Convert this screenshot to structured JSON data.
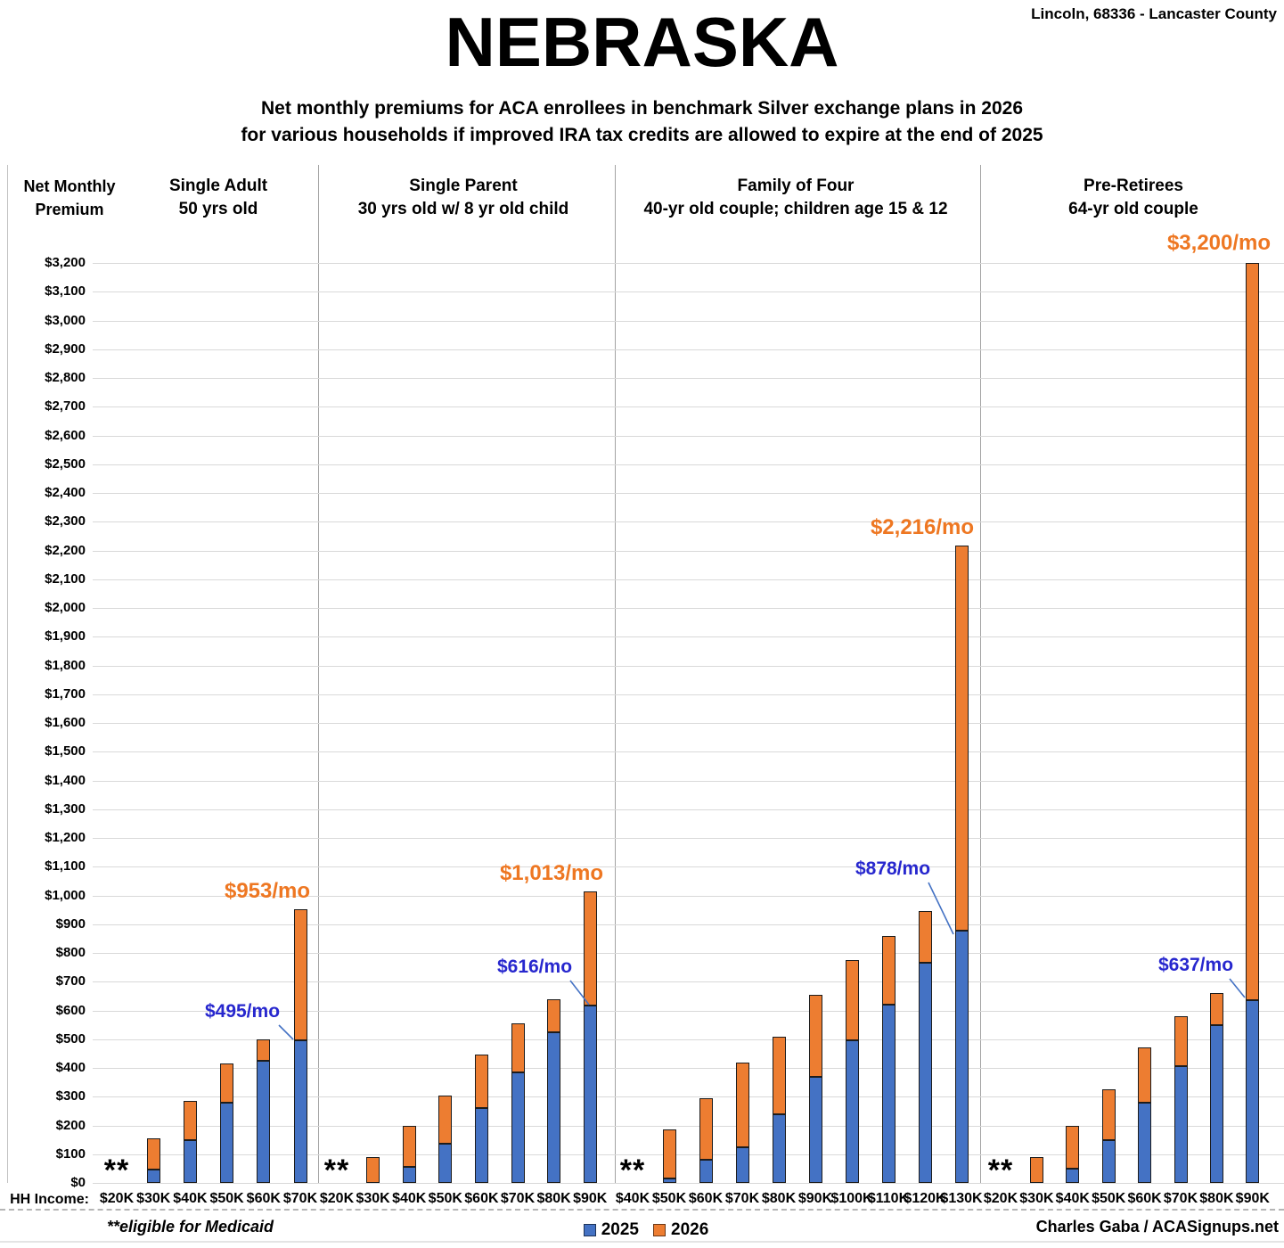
{
  "header": {
    "title": "NEBRASKA",
    "location": "Lincoln, 68336 - Lancaster County",
    "subtitle_line1": "Net monthly premiums for ACA enrollees in benchmark Silver exchange plans in 2026",
    "subtitle_line2": "for various households if improved IRA tax credits are allowed to expire at the end of 2025",
    "y_axis_header_line1": "Net Monthly",
    "y_axis_header_line2": "Premium"
  },
  "x_axis": {
    "label": "HH Income:"
  },
  "footer": {
    "medicaid_note": "**eligible for Medicaid",
    "credit": "Charles Gaba / ACASignups.net"
  },
  "legend": {
    "items": [
      {
        "label": "2025",
        "color": "#4472C4"
      },
      {
        "label": "2026",
        "color": "#ED7D31"
      }
    ]
  },
  "colors": {
    "bar_2025": "#4472C4",
    "bar_2026": "#ED7D31",
    "annotation_2025": "#2727CE",
    "annotation_2026": "#EE7722",
    "leader_line": "#4472C4",
    "gridline": "#D9D9D9"
  },
  "chart_data": {
    "type": "bar",
    "stacking": "2026 increase drawn stacked above 2025 value",
    "series_names": [
      "2025",
      "2026"
    ],
    "y_axis": {
      "min": 0,
      "max": 3200,
      "step": 100,
      "tick_format": "$#,##0"
    },
    "grid": true,
    "medicaid_marker": "**",
    "panels": [
      {
        "title_line1": "Single Adult",
        "title_line2": "50 yrs old",
        "groups": [
          {
            "income": "$20K",
            "medicaid": true
          },
          {
            "income": "$30K",
            "v2025": 45,
            "v2026": 155
          },
          {
            "income": "$40K",
            "v2025": 150,
            "v2026": 285
          },
          {
            "income": "$50K",
            "v2025": 280,
            "v2026": 415
          },
          {
            "income": "$60K",
            "v2025": 425,
            "v2026": 500
          },
          {
            "income": "$70K",
            "v2025": 495,
            "v2026": 953
          }
        ]
      },
      {
        "title_line1": "Single Parent",
        "title_line2": "30 yrs old w/ 8 yr old child",
        "groups": [
          {
            "income": "$20K",
            "medicaid": true
          },
          {
            "income": "$30K",
            "v2025": 0,
            "v2026": 90
          },
          {
            "income": "$40K",
            "v2025": 55,
            "v2026": 200
          },
          {
            "income": "$50K",
            "v2025": 135,
            "v2026": 305
          },
          {
            "income": "$60K",
            "v2025": 260,
            "v2026": 445
          },
          {
            "income": "$70K",
            "v2025": 385,
            "v2026": 555
          },
          {
            "income": "$80K",
            "v2025": 525,
            "v2026": 640
          },
          {
            "income": "$90K",
            "v2025": 616,
            "v2026": 1013
          }
        ]
      },
      {
        "title_line1": "Family of Four",
        "title_line2": "40-yr old couple; children age 15 & 12",
        "groups": [
          {
            "income": "$40K",
            "medicaid": true
          },
          {
            "income": "$50K",
            "v2025": 15,
            "v2026": 185
          },
          {
            "income": "$60K",
            "v2025": 80,
            "v2026": 295
          },
          {
            "income": "$70K",
            "v2025": 125,
            "v2026": 420
          },
          {
            "income": "$80K",
            "v2025": 240,
            "v2026": 510
          },
          {
            "income": "$90K",
            "v2025": 370,
            "v2026": 655
          },
          {
            "income": "$100K",
            "v2025": 495,
            "v2026": 775
          },
          {
            "income": "$110K",
            "v2025": 620,
            "v2026": 860
          },
          {
            "income": "$120K",
            "v2025": 765,
            "v2026": 945
          },
          {
            "income": "$130K",
            "v2025": 878,
            "v2026": 2216
          }
        ]
      },
      {
        "title_line1": "Pre-Retirees",
        "title_line2": "64-yr old couple",
        "groups": [
          {
            "income": "$20K",
            "medicaid": true
          },
          {
            "income": "$30K",
            "v2025": 0,
            "v2026": 90
          },
          {
            "income": "$40K",
            "v2025": 50,
            "v2026": 200
          },
          {
            "income": "$50K",
            "v2025": 150,
            "v2026": 325
          },
          {
            "income": "$60K",
            "v2025": 280,
            "v2026": 470
          },
          {
            "income": "$70K",
            "v2025": 405,
            "v2026": 580
          },
          {
            "income": "$80K",
            "v2025": 550,
            "v2026": 660
          },
          {
            "income": "$90K",
            "v2025": 637,
            "v2026": 3200
          }
        ]
      }
    ],
    "annotations": [
      {
        "panel": 0,
        "group": 5,
        "series": "2026",
        "text": "$953/mo"
      },
      {
        "panel": 0,
        "group": 5,
        "series": "2025",
        "text": "$495/mo"
      },
      {
        "panel": 1,
        "group": 7,
        "series": "2026",
        "text": "$1,013/mo"
      },
      {
        "panel": 1,
        "group": 7,
        "series": "2025",
        "text": "$616/mo"
      },
      {
        "panel": 2,
        "group": 9,
        "series": "2026",
        "text": "$2,216/mo"
      },
      {
        "panel": 2,
        "group": 9,
        "series": "2025",
        "text": "$878/mo"
      },
      {
        "panel": 3,
        "group": 7,
        "series": "2026",
        "text": "$3,200/mo"
      },
      {
        "panel": 3,
        "group": 7,
        "series": "2025",
        "text": "$637/mo"
      }
    ]
  }
}
